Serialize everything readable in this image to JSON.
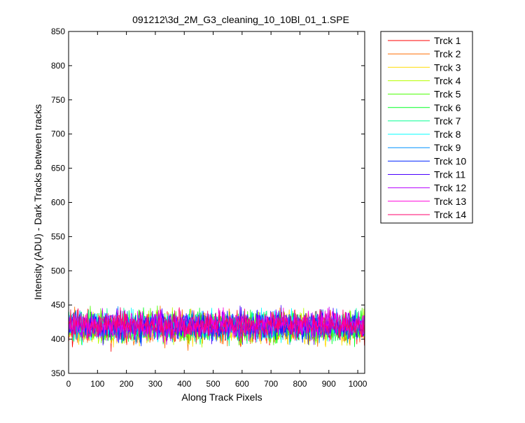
{
  "chart_data": {
    "type": "line",
    "title": "091212\\3d_2M_G3_cleaning_10_10Bl_01_1.SPE",
    "xlabel": "Along Track Pixels",
    "ylabel": "Intensity (ADU) - Dark Tracks between tracks",
    "xlim": [
      0,
      1024
    ],
    "ylim": [
      350,
      850
    ],
    "x_ticks": [
      0,
      100,
      200,
      300,
      400,
      500,
      600,
      700,
      800,
      900,
      1000
    ],
    "y_ticks": [
      350,
      400,
      450,
      500,
      550,
      600,
      650,
      700,
      750,
      800,
      850
    ],
    "grid": false,
    "legend_position": "outside-top-right",
    "x_range": [
      1,
      1024
    ],
    "series": [
      {
        "name": "Trck 1",
        "color": "#ff0000",
        "mean": 416,
        "spread": 16
      },
      {
        "name": "Trck 2",
        "color": "#ff6d00",
        "mean": 416,
        "spread": 16
      },
      {
        "name": "Trck 3",
        "color": "#ffdb00",
        "mean": 417,
        "spread": 15
      },
      {
        "name": "Trck 4",
        "color": "#b6ff00",
        "mean": 417,
        "spread": 15
      },
      {
        "name": "Trck 5",
        "color": "#49ff00",
        "mean": 418,
        "spread": 15
      },
      {
        "name": "Trck 6",
        "color": "#00ff24",
        "mean": 418,
        "spread": 15
      },
      {
        "name": "Trck 7",
        "color": "#00ff92",
        "mean": 419,
        "spread": 14
      },
      {
        "name": "Trck 8",
        "color": "#00ffff",
        "mean": 419,
        "spread": 14
      },
      {
        "name": "Trck 9",
        "color": "#0092ff",
        "mean": 419,
        "spread": 14
      },
      {
        "name": "Trck 10",
        "color": "#0024ff",
        "mean": 419,
        "spread": 14
      },
      {
        "name": "Trck 11",
        "color": "#4900ff",
        "mean": 420,
        "spread": 14
      },
      {
        "name": "Trck 12",
        "color": "#b600ff",
        "mean": 420,
        "spread": 14
      },
      {
        "name": "Trck 13",
        "color": "#ff00db",
        "mean": 421,
        "spread": 13
      },
      {
        "name": "Trck 14",
        "color": "#ff006d",
        "mean": 421,
        "spread": 13
      }
    ]
  }
}
